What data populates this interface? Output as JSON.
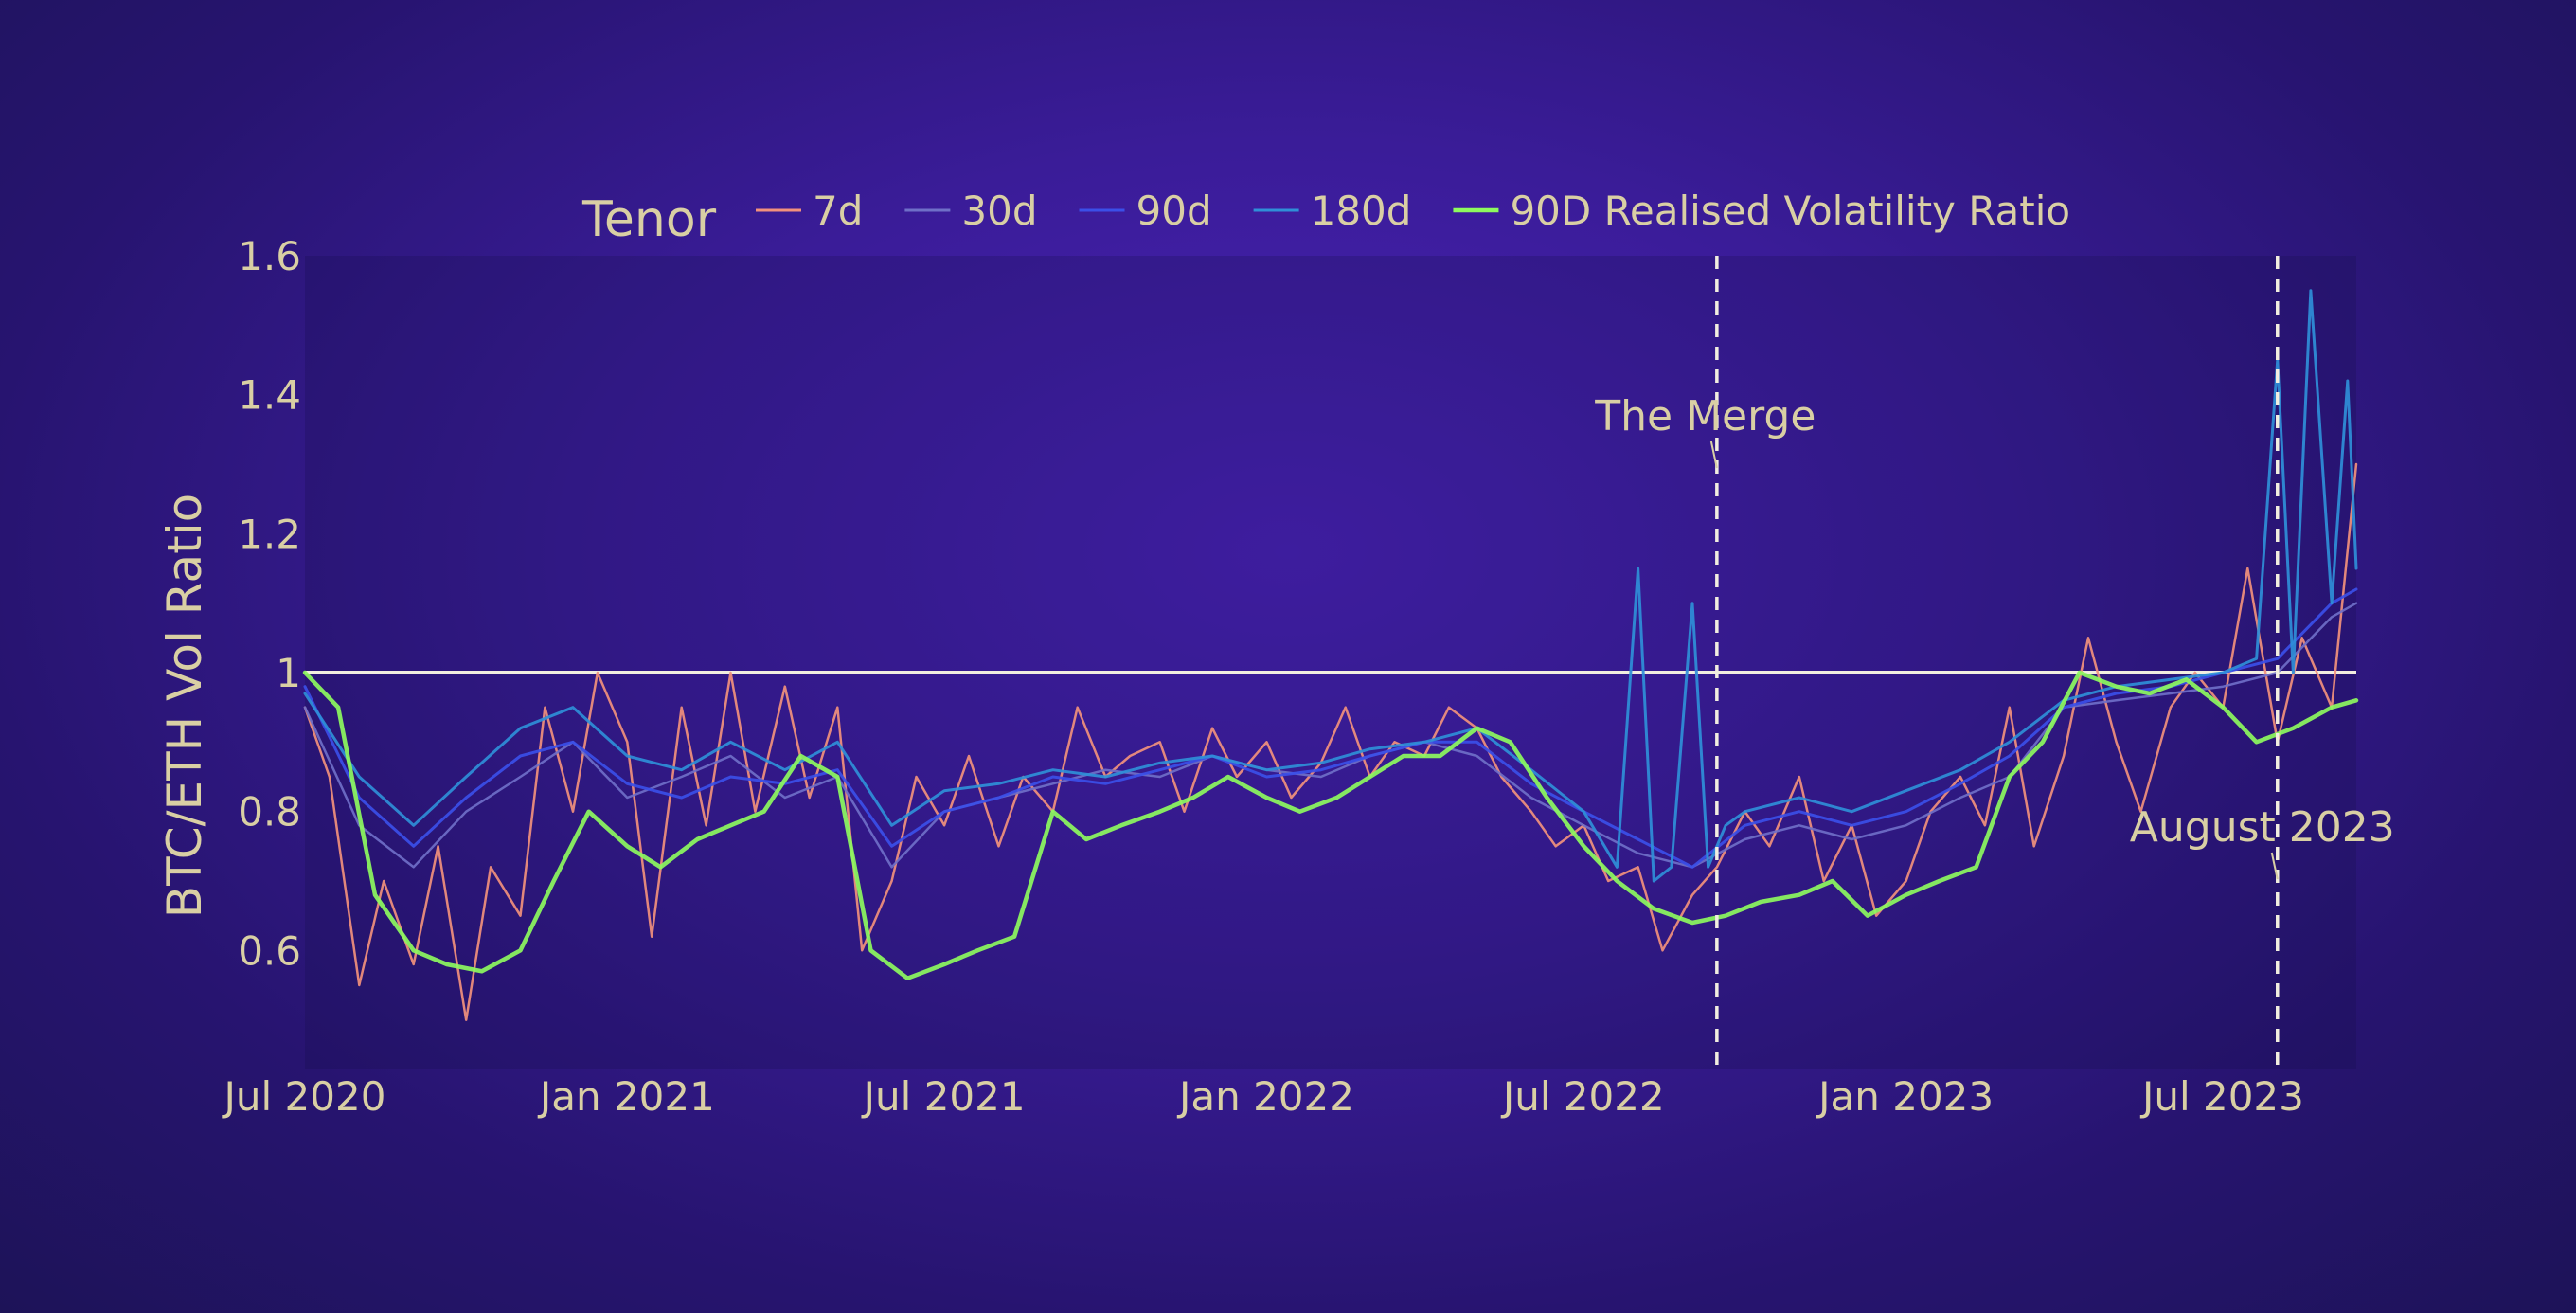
{
  "chart_data": {
    "type": "line",
    "ylabel": "BTC/ETH Vol Ratio",
    "xlabel": "",
    "title": "",
    "legend": {
      "title": "Tenor",
      "placement": "top"
    },
    "x_start": "2020-07-01",
    "x_end": "2023-09-15",
    "ylim": [
      0.43,
      1.6
    ],
    "y_ticks": [
      {
        "value": 0.6,
        "label": "0.6"
      },
      {
        "value": 0.8,
        "label": "0.8"
      },
      {
        "value": 1.0,
        "label": "1"
      },
      {
        "value": 1.2,
        "label": "1.2"
      },
      {
        "value": 1.4,
        "label": "1.4"
      },
      {
        "value": 1.6,
        "label": "1.6"
      }
    ],
    "x_ticks": [
      {
        "date": "2020-07-01",
        "label": "Jul 2020"
      },
      {
        "date": "2021-01-01",
        "label": "Jan 2021"
      },
      {
        "date": "2021-07-01",
        "label": "Jul 2021"
      },
      {
        "date": "2022-01-01",
        "label": "Jan 2022"
      },
      {
        "date": "2022-07-01",
        "label": "Jul 2022"
      },
      {
        "date": "2023-01-01",
        "label": "Jan 2023"
      },
      {
        "date": "2023-07-01",
        "label": "Jul 2023"
      }
    ],
    "reference_line": {
      "y": 1.0,
      "color": "#f2eee0"
    },
    "annotations": [
      {
        "text": "The Merge",
        "date": "2022-09-15"
      },
      {
        "text": "August 2023",
        "date": "2023-08-01"
      }
    ],
    "series": [
      {
        "name": "7d",
        "color": "#f2917c",
        "width": 2.5,
        "x": [
          "2020-07-01",
          "2020-07-15",
          "2020-08-01",
          "2020-08-15",
          "2020-09-01",
          "2020-09-15",
          "2020-10-01",
          "2020-10-15",
          "2020-11-01",
          "2020-11-15",
          "2020-12-01",
          "2020-12-15",
          "2021-01-01",
          "2021-01-15",
          "2021-02-01",
          "2021-02-15",
          "2021-03-01",
          "2021-03-15",
          "2021-04-01",
          "2021-04-15",
          "2021-05-01",
          "2021-05-15",
          "2021-06-01",
          "2021-06-15",
          "2021-07-01",
          "2021-07-15",
          "2021-08-01",
          "2021-08-15",
          "2021-09-01",
          "2021-09-15",
          "2021-10-01",
          "2021-10-15",
          "2021-11-01",
          "2021-11-15",
          "2021-12-01",
          "2021-12-15",
          "2022-01-01",
          "2022-01-15",
          "2022-02-01",
          "2022-02-15",
          "2022-03-01",
          "2022-03-15",
          "2022-04-01",
          "2022-04-15",
          "2022-05-01",
          "2022-05-15",
          "2022-06-01",
          "2022-06-15",
          "2022-07-01",
          "2022-07-15",
          "2022-08-01",
          "2022-08-15",
          "2022-09-01",
          "2022-09-15",
          "2022-10-01",
          "2022-10-15",
          "2022-11-01",
          "2022-11-15",
          "2022-12-01",
          "2022-12-15",
          "2023-01-01",
          "2023-01-15",
          "2023-02-01",
          "2023-02-15",
          "2023-03-01",
          "2023-03-15",
          "2023-04-01",
          "2023-04-15",
          "2023-05-01",
          "2023-05-15",
          "2023-06-01",
          "2023-06-15",
          "2023-07-01",
          "2023-07-15",
          "2023-08-01",
          "2023-08-15",
          "2023-09-01",
          "2023-09-15"
        ],
        "y": [
          0.95,
          0.85,
          0.55,
          0.7,
          0.58,
          0.75,
          0.5,
          0.72,
          0.65,
          0.95,
          0.8,
          1.0,
          0.9,
          0.62,
          0.95,
          0.78,
          1.0,
          0.8,
          0.98,
          0.82,
          0.95,
          0.6,
          0.7,
          0.85,
          0.78,
          0.88,
          0.75,
          0.85,
          0.8,
          0.95,
          0.85,
          0.88,
          0.9,
          0.8,
          0.92,
          0.85,
          0.9,
          0.82,
          0.87,
          0.95,
          0.85,
          0.9,
          0.88,
          0.95,
          0.92,
          0.85,
          0.8,
          0.75,
          0.78,
          0.7,
          0.72,
          0.6,
          0.68,
          0.72,
          0.8,
          0.75,
          0.85,
          0.7,
          0.78,
          0.65,
          0.7,
          0.8,
          0.85,
          0.78,
          0.95,
          0.75,
          0.88,
          1.05,
          0.9,
          0.8,
          0.95,
          1.0,
          0.95,
          1.15,
          0.9,
          1.05,
          0.95,
          1.3
        ]
      },
      {
        "name": "30d",
        "color": "#6f6fc8",
        "width": 2.5,
        "x": [
          "2020-07-01",
          "2020-08-01",
          "2020-09-01",
          "2020-10-01",
          "2020-11-01",
          "2020-12-01",
          "2021-01-01",
          "2021-02-01",
          "2021-03-01",
          "2021-04-01",
          "2021-05-01",
          "2021-06-01",
          "2021-07-01",
          "2021-08-01",
          "2021-09-01",
          "2021-10-01",
          "2021-11-01",
          "2021-12-01",
          "2022-01-01",
          "2022-02-01",
          "2022-03-01",
          "2022-04-01",
          "2022-05-01",
          "2022-06-01",
          "2022-07-01",
          "2022-08-01",
          "2022-09-01",
          "2022-10-01",
          "2022-11-01",
          "2022-12-01",
          "2023-01-01",
          "2023-02-01",
          "2023-03-01",
          "2023-04-01",
          "2023-05-01",
          "2023-06-01",
          "2023-07-01",
          "2023-08-01",
          "2023-09-01",
          "2023-09-15"
        ],
        "y": [
          0.95,
          0.78,
          0.72,
          0.8,
          0.85,
          0.9,
          0.82,
          0.85,
          0.88,
          0.82,
          0.85,
          0.72,
          0.8,
          0.82,
          0.84,
          0.86,
          0.85,
          0.88,
          0.86,
          0.85,
          0.88,
          0.9,
          0.88,
          0.82,
          0.78,
          0.74,
          0.72,
          0.76,
          0.78,
          0.76,
          0.78,
          0.82,
          0.85,
          0.95,
          0.96,
          0.97,
          0.98,
          1.0,
          1.08,
          1.1
        ]
      },
      {
        "name": "90d",
        "color": "#3b4fe8",
        "width": 3,
        "x": [
          "2020-07-01",
          "2020-08-01",
          "2020-09-01",
          "2020-10-01",
          "2020-11-01",
          "2020-12-01",
          "2021-01-01",
          "2021-02-01",
          "2021-03-01",
          "2021-04-01",
          "2021-05-01",
          "2021-06-01",
          "2021-07-01",
          "2021-08-01",
          "2021-09-01",
          "2021-10-01",
          "2021-11-01",
          "2021-12-01",
          "2022-01-01",
          "2022-02-01",
          "2022-03-01",
          "2022-04-01",
          "2022-05-01",
          "2022-06-01",
          "2022-07-01",
          "2022-08-01",
          "2022-09-01",
          "2022-10-01",
          "2022-11-01",
          "2022-12-01",
          "2023-01-01",
          "2023-02-01",
          "2023-03-01",
          "2023-04-01",
          "2023-05-01",
          "2023-06-01",
          "2023-07-01",
          "2023-08-01",
          "2023-09-01",
          "2023-09-15"
        ],
        "y": [
          0.98,
          0.82,
          0.75,
          0.82,
          0.88,
          0.9,
          0.84,
          0.82,
          0.85,
          0.84,
          0.86,
          0.75,
          0.8,
          0.82,
          0.85,
          0.84,
          0.86,
          0.88,
          0.85,
          0.86,
          0.88,
          0.9,
          0.9,
          0.84,
          0.8,
          0.76,
          0.72,
          0.78,
          0.8,
          0.78,
          0.8,
          0.84,
          0.88,
          0.95,
          0.97,
          0.98,
          1.0,
          1.02,
          1.1,
          1.12
        ]
      },
      {
        "name": "180d",
        "color": "#2f8fd8",
        "width": 3,
        "x": [
          "2020-07-01",
          "2020-08-01",
          "2020-09-01",
          "2020-10-01",
          "2020-11-01",
          "2020-12-01",
          "2021-01-01",
          "2021-02-01",
          "2021-03-01",
          "2021-04-01",
          "2021-05-01",
          "2021-06-01",
          "2021-07-01",
          "2021-08-01",
          "2021-09-01",
          "2021-10-01",
          "2021-11-01",
          "2021-12-01",
          "2022-01-01",
          "2022-02-01",
          "2022-03-01",
          "2022-04-01",
          "2022-05-01",
          "2022-06-01",
          "2022-07-01",
          "2022-07-20",
          "2022-08-01",
          "2022-08-10",
          "2022-08-20",
          "2022-09-01",
          "2022-09-10",
          "2022-09-20",
          "2022-10-01",
          "2022-11-01",
          "2022-12-01",
          "2023-01-01",
          "2023-02-01",
          "2023-03-01",
          "2023-04-01",
          "2023-05-01",
          "2023-06-01",
          "2023-07-01",
          "2023-07-20",
          "2023-08-01",
          "2023-08-10",
          "2023-08-20",
          "2023-09-01",
          "2023-09-10",
          "2023-09-15"
        ],
        "y": [
          0.97,
          0.85,
          0.78,
          0.85,
          0.92,
          0.95,
          0.88,
          0.86,
          0.9,
          0.86,
          0.9,
          0.78,
          0.83,
          0.84,
          0.86,
          0.85,
          0.87,
          0.88,
          0.86,
          0.87,
          0.89,
          0.9,
          0.92,
          0.86,
          0.8,
          0.72,
          1.15,
          0.7,
          0.72,
          1.1,
          0.72,
          0.78,
          0.8,
          0.82,
          0.8,
          0.83,
          0.86,
          0.9,
          0.96,
          0.98,
          0.99,
          1.0,
          1.02,
          1.45,
          1.0,
          1.55,
          1.1,
          1.42,
          1.15
        ]
      },
      {
        "name": "90D Realised Volatility Ratio",
        "color": "#8dfa5e",
        "width": 4.5,
        "x": [
          "2020-07-01",
          "2020-07-20",
          "2020-08-10",
          "2020-09-01",
          "2020-09-20",
          "2020-10-10",
          "2020-11-01",
          "2020-11-20",
          "2020-12-10",
          "2021-01-01",
          "2021-01-20",
          "2021-02-10",
          "2021-03-01",
          "2021-03-20",
          "2021-04-10",
          "2021-05-01",
          "2021-05-20",
          "2021-06-10",
          "2021-07-01",
          "2021-07-20",
          "2021-08-10",
          "2021-09-01",
          "2021-09-20",
          "2021-10-10",
          "2021-11-01",
          "2021-11-20",
          "2021-12-10",
          "2022-01-01",
          "2022-01-20",
          "2022-02-10",
          "2022-03-01",
          "2022-03-20",
          "2022-04-10",
          "2022-05-01",
          "2022-05-20",
          "2022-06-10",
          "2022-07-01",
          "2022-07-20",
          "2022-08-10",
          "2022-09-01",
          "2022-09-20",
          "2022-10-10",
          "2022-11-01",
          "2022-11-20",
          "2022-12-10",
          "2023-01-01",
          "2023-01-20",
          "2023-02-10",
          "2023-03-01",
          "2023-03-20",
          "2023-04-10",
          "2023-05-01",
          "2023-05-20",
          "2023-06-10",
          "2023-07-01",
          "2023-07-20",
          "2023-08-10",
          "2023-09-01",
          "2023-09-15"
        ],
        "y": [
          1.0,
          0.95,
          0.68,
          0.6,
          0.58,
          0.57,
          0.6,
          0.7,
          0.8,
          0.75,
          0.72,
          0.76,
          0.78,
          0.8,
          0.88,
          0.85,
          0.6,
          0.56,
          0.58,
          0.6,
          0.62,
          0.8,
          0.76,
          0.78,
          0.8,
          0.82,
          0.85,
          0.82,
          0.8,
          0.82,
          0.85,
          0.88,
          0.88,
          0.92,
          0.9,
          0.82,
          0.75,
          0.7,
          0.66,
          0.64,
          0.65,
          0.67,
          0.68,
          0.7,
          0.65,
          0.68,
          0.7,
          0.72,
          0.85,
          0.9,
          1.0,
          0.98,
          0.97,
          0.99,
          0.95,
          0.9,
          0.92,
          0.95,
          0.96
        ]
      }
    ]
  }
}
